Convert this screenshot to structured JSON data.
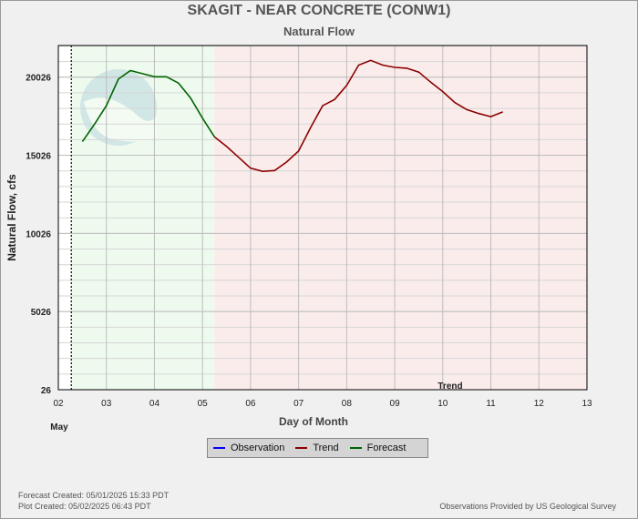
{
  "header": {
    "title": "SKAGIT - NEAR CONCRETE  (CONW1)",
    "subtitle": "Natural Flow"
  },
  "footer": {
    "forecast_created": "Forecast Created: 05/01/2025 15:33 PDT",
    "plot_created": "Plot Created: 05/02/2025 06:43 PDT",
    "credit": "Observations Provided by US Geological Survey"
  },
  "legend": {
    "items": [
      {
        "label": "Observation",
        "color": "#0000ff"
      },
      {
        "label": "Trend",
        "color": "#8b0000"
      },
      {
        "label": "Forecast",
        "color": "#006400"
      }
    ]
  },
  "chart_data": {
    "type": "line",
    "xlabel": "Day of Month",
    "ylabel": "Natural Flow, cfs",
    "x_tick_labels": [
      "02",
      "03",
      "04",
      "05",
      "06",
      "07",
      "08",
      "09",
      "10",
      "11",
      "12",
      "13"
    ],
    "x_month_label": "May",
    "xlim": [
      2,
      13
    ],
    "y_tick_values": [
      26,
      5026,
      10026,
      15026,
      20026
    ],
    "y_tick_labels": [
      "26",
      "5026",
      "10026",
      "15026",
      "20026"
    ],
    "ylim": [
      26,
      22050
    ],
    "observation_marker_day": 2.27,
    "forecast_region": [
      2.27,
      5.25
    ],
    "trend_region": [
      5.25,
      13
    ],
    "trend_label": "Trend",
    "colors": {
      "forecast_bg": "#eefaee",
      "trend_bg": "#fbecec",
      "grid": "#bdbdbd"
    },
    "series": [
      {
        "name": "Forecast",
        "color": "#006400",
        "x": [
          2.5,
          2.75,
          3.0,
          3.25,
          3.5,
          3.75,
          4.0,
          4.25,
          4.5,
          4.75,
          5.0,
          5.25
        ],
        "y": [
          15900,
          17000,
          18200,
          19900,
          20450,
          20250,
          20050,
          20050,
          19650,
          18700,
          17400,
          16200
        ]
      },
      {
        "name": "Trend",
        "color": "#8b0000",
        "x": [
          5.25,
          5.5,
          5.75,
          6.0,
          6.25,
          6.5,
          6.75,
          7.0,
          7.25,
          7.5,
          7.75,
          8.0,
          8.25,
          8.5,
          8.75,
          9.0,
          9.25,
          9.5,
          9.75,
          10.0,
          10.25,
          10.5,
          10.75,
          11.0,
          11.25
        ],
        "y": [
          16200,
          15600,
          14900,
          14200,
          14000,
          14050,
          14600,
          15300,
          16800,
          18200,
          18600,
          19500,
          20800,
          21100,
          20800,
          20650,
          20600,
          20350,
          19700,
          19100,
          18400,
          17950,
          17700,
          17500,
          17800
        ]
      }
    ]
  }
}
